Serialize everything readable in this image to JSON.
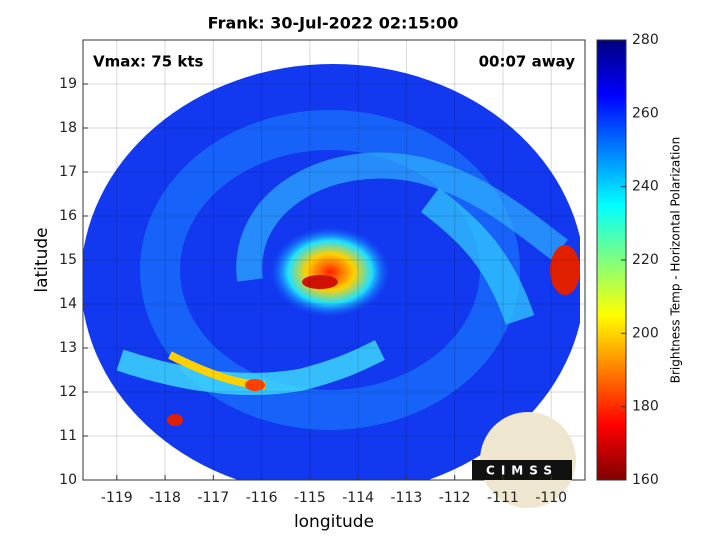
{
  "chart_data": {
    "type": "image",
    "title": "Frank: 30-Jul-2022 02:15:00",
    "annotations": [
      "Vmax: 75 kts",
      "00:07 away"
    ],
    "xlabel": "longitude",
    "ylabel": "latitude",
    "xlim": [
      -119.7,
      -109.3
    ],
    "ylim": [
      10,
      20
    ],
    "xticks": [
      -119,
      -118,
      -117,
      -116,
      -115,
      -114,
      -113,
      -112,
      -111,
      -110
    ],
    "yticks": [
      10,
      11,
      12,
      13,
      14,
      15,
      16,
      17,
      18,
      19
    ],
    "grid": true,
    "colorbar": {
      "label": "Brightness Temp - Horizontal Polarization",
      "lim": [
        160,
        280
      ],
      "ticks": [
        160,
        180,
        200,
        220,
        240,
        260,
        280
      ],
      "colormap": [
        "#7f0000",
        "#ff0000",
        "#ff7f00",
        "#ffff00",
        "#7fff7f",
        "#00ffff",
        "#007fff",
        "#0000ff",
        "#00007f"
      ]
    },
    "logo": "CIMSS"
  }
}
